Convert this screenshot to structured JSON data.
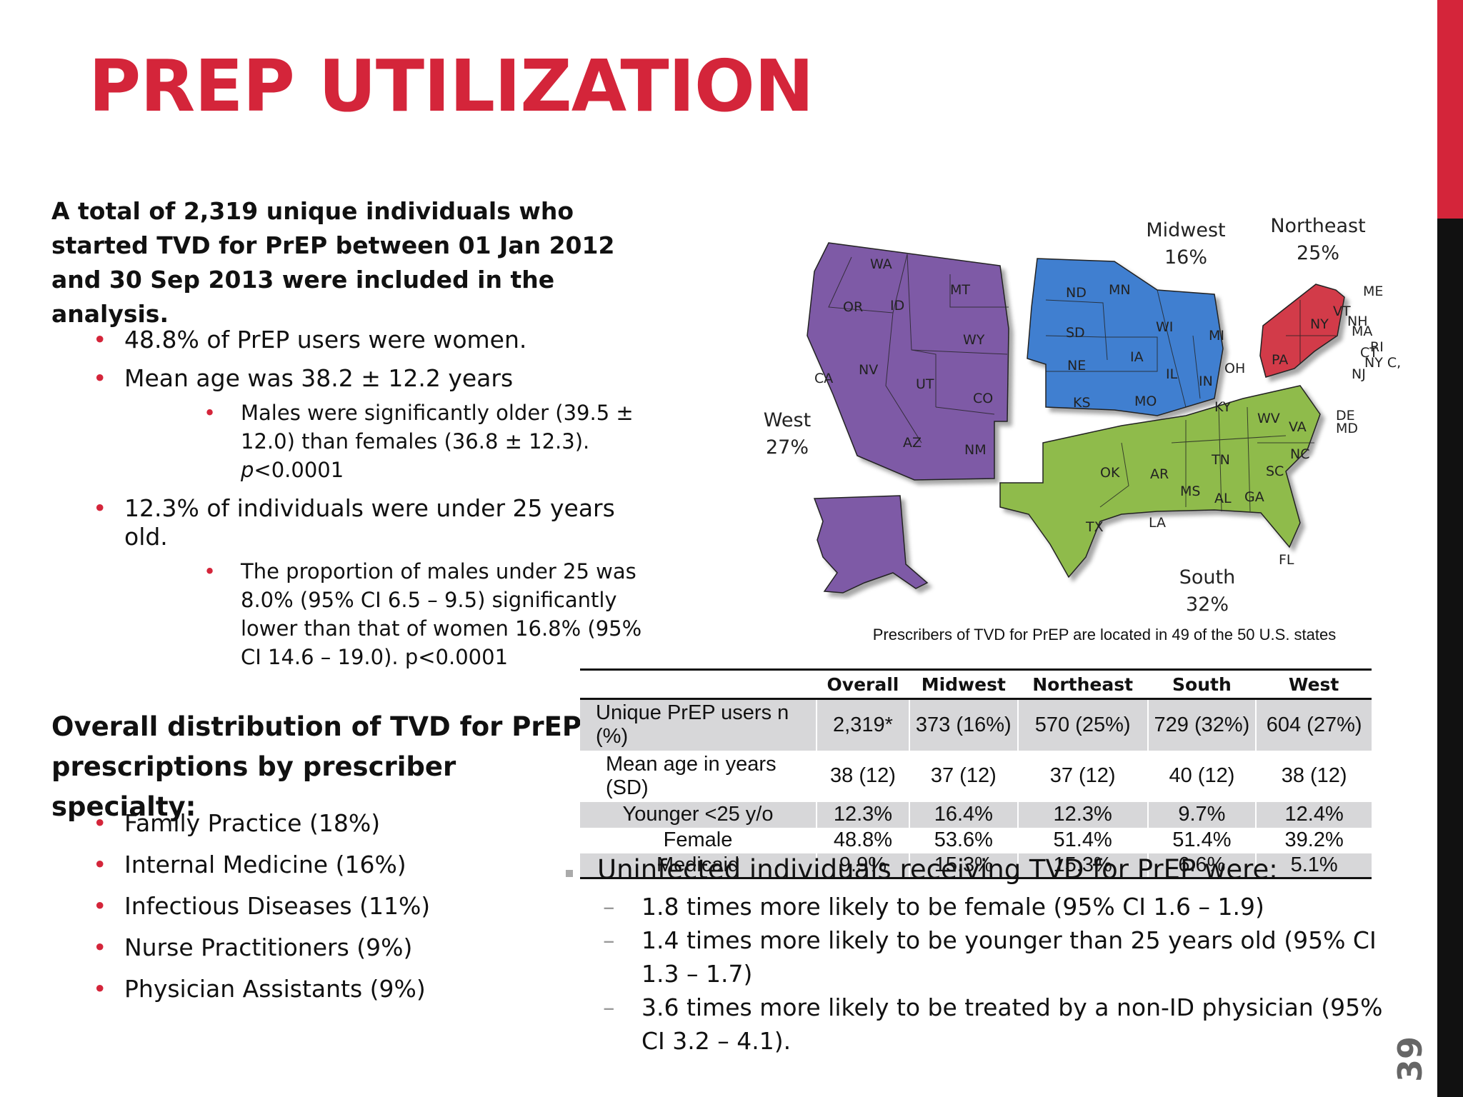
{
  "slide": {
    "title": "PREP UTILIZATION",
    "page_number": "39"
  },
  "intro": {
    "text": "A total of 2,319 unique individuals who started TVD for PrEP between 01 Jan 2012 and 30 Sep 2013 were included in the analysis."
  },
  "bullets": {
    "women": "48.8% of PrEP users were women.",
    "mean_age": "Mean age was 38.2 ± 12.2 years",
    "males_older_main": "Males were significantly older (39.5 ± 12.0) than females (36.8 ± 12.3).",
    "males_older_p": "p",
    "males_older_p_rest": "<0.0001",
    "under25": "12.3% of individuals were under 25 years old.",
    "under25_males": "The proportion of males under 25 was 8.0% (95% CI 6.5 – 9.5) significantly lower than that of women 16.8% (95% CI 14.6 – 19.0). p<0.0001"
  },
  "specialty": {
    "heading": "Overall distribution of TVD for PrEP prescriptions by prescriber specialty:",
    "items": [
      "Family Practice (18%)",
      "Internal Medicine (16%)",
      "Infectious Diseases (11%)",
      "Nurse Practitioners (9%)",
      "Physician Assistants (9%)"
    ]
  },
  "map": {
    "caption": "Prescribers of TVD for PrEP are located in 49 of the 50 U.S. states",
    "colors": {
      "west": "#7e5aa6",
      "midwest": "#3f7fd0",
      "northeast": "#d23a48",
      "south": "#8fbb4c"
    },
    "regions": {
      "west": {
        "name": "West",
        "pct": "27%"
      },
      "midwest": {
        "name": "Midwest",
        "pct": "16%"
      },
      "northeast": {
        "name": "Northeast",
        "pct": "25%"
      },
      "south": {
        "name": "South",
        "pct": "32%"
      }
    },
    "states": {
      "WA": "WA",
      "OR": "OR",
      "ID": "ID",
      "MT": "MT",
      "WY": "WY",
      "CA": "CA",
      "NV": "NV",
      "UT": "UT",
      "CO": "CO",
      "AZ": "AZ",
      "NM": "NM",
      "ND": "ND",
      "MN": "MN",
      "SD": "SD",
      "NE": "NE",
      "KS": "KS",
      "IA": "IA",
      "MO": "MO",
      "WI": "WI",
      "IL": "IL",
      "MI": "MI",
      "IN": "IN",
      "OH": "OH",
      "NY": "NY",
      "PA": "PA",
      "VT": "VT",
      "NH": "NH",
      "ME": "ME",
      "MA": "MA",
      "RI": "RI",
      "CT": "CT",
      "NJ": "NJ",
      "NYC": "NY C, LI",
      "KY": "KY",
      "WV": "WV",
      "VA": "VA",
      "DE": "DE",
      "MD": "MD",
      "NC": "NC",
      "TN": "TN",
      "SC": "SC",
      "GA": "GA",
      "AL": "AL",
      "MS": "MS",
      "AR": "AR",
      "LA": "LA",
      "OK": "OK",
      "TX": "TX",
      "FL": "FL"
    }
  },
  "table": {
    "headers": [
      "",
      "Overall",
      "Midwest",
      "Northeast",
      "South",
      "West"
    ],
    "rows": [
      [
        "Unique PrEP users n (%)",
        "2,319*",
        "373 (16%)",
        "570  (25%)",
        "729 (32%)",
        "604 (27%)"
      ],
      [
        "Mean age in years (SD)",
        "38 (12)",
        "37 (12)",
        "37 (12)",
        "40 (12)",
        "38 (12)"
      ],
      [
        "Younger <25 y/o",
        "12.3%",
        "16.4%",
        "12.3%",
        "9.7%",
        "12.4%"
      ],
      [
        "Female",
        "48.8%",
        "53.6%",
        "51.4%",
        "51.4%",
        "39.2%"
      ],
      [
        "Medicaid",
        "9.9%",
        "15.3%",
        "15.3%",
        "6.6%",
        "5.1%"
      ]
    ]
  },
  "summary": {
    "heading": "Uninfected individuals receiving TVD for PrEP were:",
    "items": [
      "1.8 times more likely to be female (95% CI 1.6 – 1.9)",
      "1.4 times more likely to be younger than 25 years old (95% CI 1.3 – 1.7)",
      "3.6 times more likely to be treated by a non-ID physician (95% CI 3.2 – 4.1)."
    ]
  }
}
